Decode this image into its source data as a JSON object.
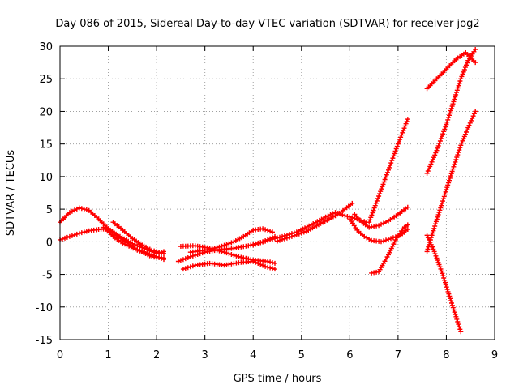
{
  "chart_data": {
    "type": "scatter",
    "title": "Day 086 of 2015, Sidereal Day-to-day VTEC variation (SDTVAR) for receiver jog2",
    "xlabel": "GPS time / hours",
    "ylabel": "SDTVAR / TECUs",
    "xlim": [
      0,
      9
    ],
    "ylim": [
      -15,
      30
    ],
    "xticks": [
      "0",
      "1",
      "2",
      "3",
      "4",
      "5",
      "6",
      "7",
      "8",
      "9"
    ],
    "yticks": [
      "-15",
      "-10",
      "-5",
      "0",
      "5",
      "10",
      "15",
      "20",
      "25",
      "30"
    ],
    "grid": true,
    "marker": "+",
    "color": "#ff0000",
    "series": [
      {
        "x": [
          0,
          0.2,
          0.4,
          0.6,
          0.8,
          1.0,
          1.2,
          1.5,
          1.8,
          2.0,
          2.15
        ],
        "y": [
          0.3,
          0.8,
          1.3,
          1.7,
          1.9,
          2.0,
          1.0,
          -0.3,
          -1.2,
          -1.8,
          -1.5
        ]
      },
      {
        "x": [
          0,
          0.2,
          0.4,
          0.6,
          0.8,
          1.0,
          1.3,
          1.6,
          1.9,
          2.15
        ],
        "y": [
          3.0,
          4.5,
          5.2,
          4.8,
          3.5,
          2.0,
          0.3,
          -1.2,
          -2.3,
          -2.5
        ]
      },
      {
        "x": [
          0.9,
          1.1,
          1.3,
          1.6,
          1.9,
          2.15
        ],
        "y": [
          2.2,
          0.8,
          -0.2,
          -1.3,
          -2.0,
          -2.7
        ]
      },
      {
        "x": [
          1.1,
          1.3,
          1.5,
          1.7,
          1.9,
          2.15
        ],
        "y": [
          3.0,
          1.8,
          0.5,
          -0.5,
          -1.3,
          -1.8
        ]
      },
      {
        "x": [
          2.45,
          2.7,
          3.0,
          3.3,
          3.6,
          3.9,
          4.2,
          4.45
        ],
        "y": [
          -3.0,
          -2.3,
          -1.6,
          -1.2,
          -1.0,
          -0.6,
          0.0,
          0.8
        ]
      },
      {
        "x": [
          2.5,
          2.8,
          3.1,
          3.4,
          3.7,
          4.0,
          4.3,
          4.45
        ],
        "y": [
          -0.7,
          -0.6,
          -1.0,
          -1.6,
          -2.3,
          -2.8,
          -3.0,
          -3.3
        ]
      },
      {
        "x": [
          2.55,
          2.8,
          3.1,
          3.4,
          3.7,
          4.0,
          4.25,
          4.45
        ],
        "y": [
          -4.2,
          -3.6,
          -3.3,
          -3.6,
          -3.2,
          -3.0,
          -3.8,
          -4.2
        ]
      },
      {
        "x": [
          2.7,
          3.0,
          3.3,
          3.6,
          3.8,
          4.0,
          4.2,
          4.4
        ],
        "y": [
          -1.6,
          -1.3,
          -0.8,
          0.0,
          0.8,
          1.8,
          2.0,
          1.5
        ]
      },
      {
        "x": [
          4.0,
          4.3,
          4.6,
          4.9,
          5.2,
          5.5,
          5.7,
          5.9,
          6.1,
          6.35
        ],
        "y": [
          -0.5,
          0.2,
          0.8,
          1.5,
          2.6,
          3.8,
          4.5,
          4.0,
          3.6,
          3.0
        ]
      },
      {
        "x": [
          4.5,
          4.8,
          5.1,
          5.4,
          5.7,
          5.9,
          6.05
        ],
        "y": [
          0.1,
          0.8,
          1.6,
          2.8,
          4.0,
          5.0,
          5.9
        ]
      },
      {
        "x": [
          6.0,
          6.15,
          6.3,
          6.45,
          6.65,
          6.85,
          7.05,
          7.2
        ],
        "y": [
          3.5,
          1.8,
          0.8,
          0.2,
          0.0,
          0.5,
          1.0,
          1.9
        ]
      },
      {
        "x": [
          6.1,
          6.25,
          6.4,
          6.6,
          6.8,
          7.0,
          7.2
        ],
        "y": [
          4.2,
          3.0,
          2.2,
          2.5,
          3.2,
          4.2,
          5.3
        ]
      },
      {
        "x": [
          6.4,
          6.6,
          6.8,
          7.0,
          7.2
        ],
        "y": [
          3.0,
          7.0,
          11.0,
          15.0,
          18.8
        ]
      },
      {
        "x": [
          6.45,
          6.6,
          6.8,
          6.95,
          7.1,
          7.2
        ],
        "y": [
          -4.8,
          -4.6,
          -2.0,
          0.3,
          2.0,
          2.6
        ]
      },
      {
        "x": [
          7.6,
          7.7,
          7.85,
          8.0,
          8.15,
          8.3,
          8.45,
          8.6
        ],
        "y": [
          -1.5,
          1.0,
          4.5,
          8.0,
          11.5,
          14.8,
          17.5,
          20.0
        ]
      },
      {
        "x": [
          7.6,
          7.8,
          8.0,
          8.15,
          8.3,
          8.45,
          8.6
        ],
        "y": [
          10.5,
          14.0,
          18.0,
          21.5,
          25.0,
          27.8,
          29.5
        ]
      },
      {
        "x": [
          7.6,
          7.8,
          8.0,
          8.2,
          8.4,
          8.6
        ],
        "y": [
          23.5,
          25.0,
          26.5,
          28.0,
          29.0,
          27.5
        ]
      },
      {
        "x": [
          7.6,
          7.75,
          7.9,
          8.05,
          8.2,
          8.3
        ],
        "y": [
          1.0,
          -1.5,
          -4.5,
          -8.0,
          -11.5,
          -13.8
        ]
      }
    ]
  }
}
